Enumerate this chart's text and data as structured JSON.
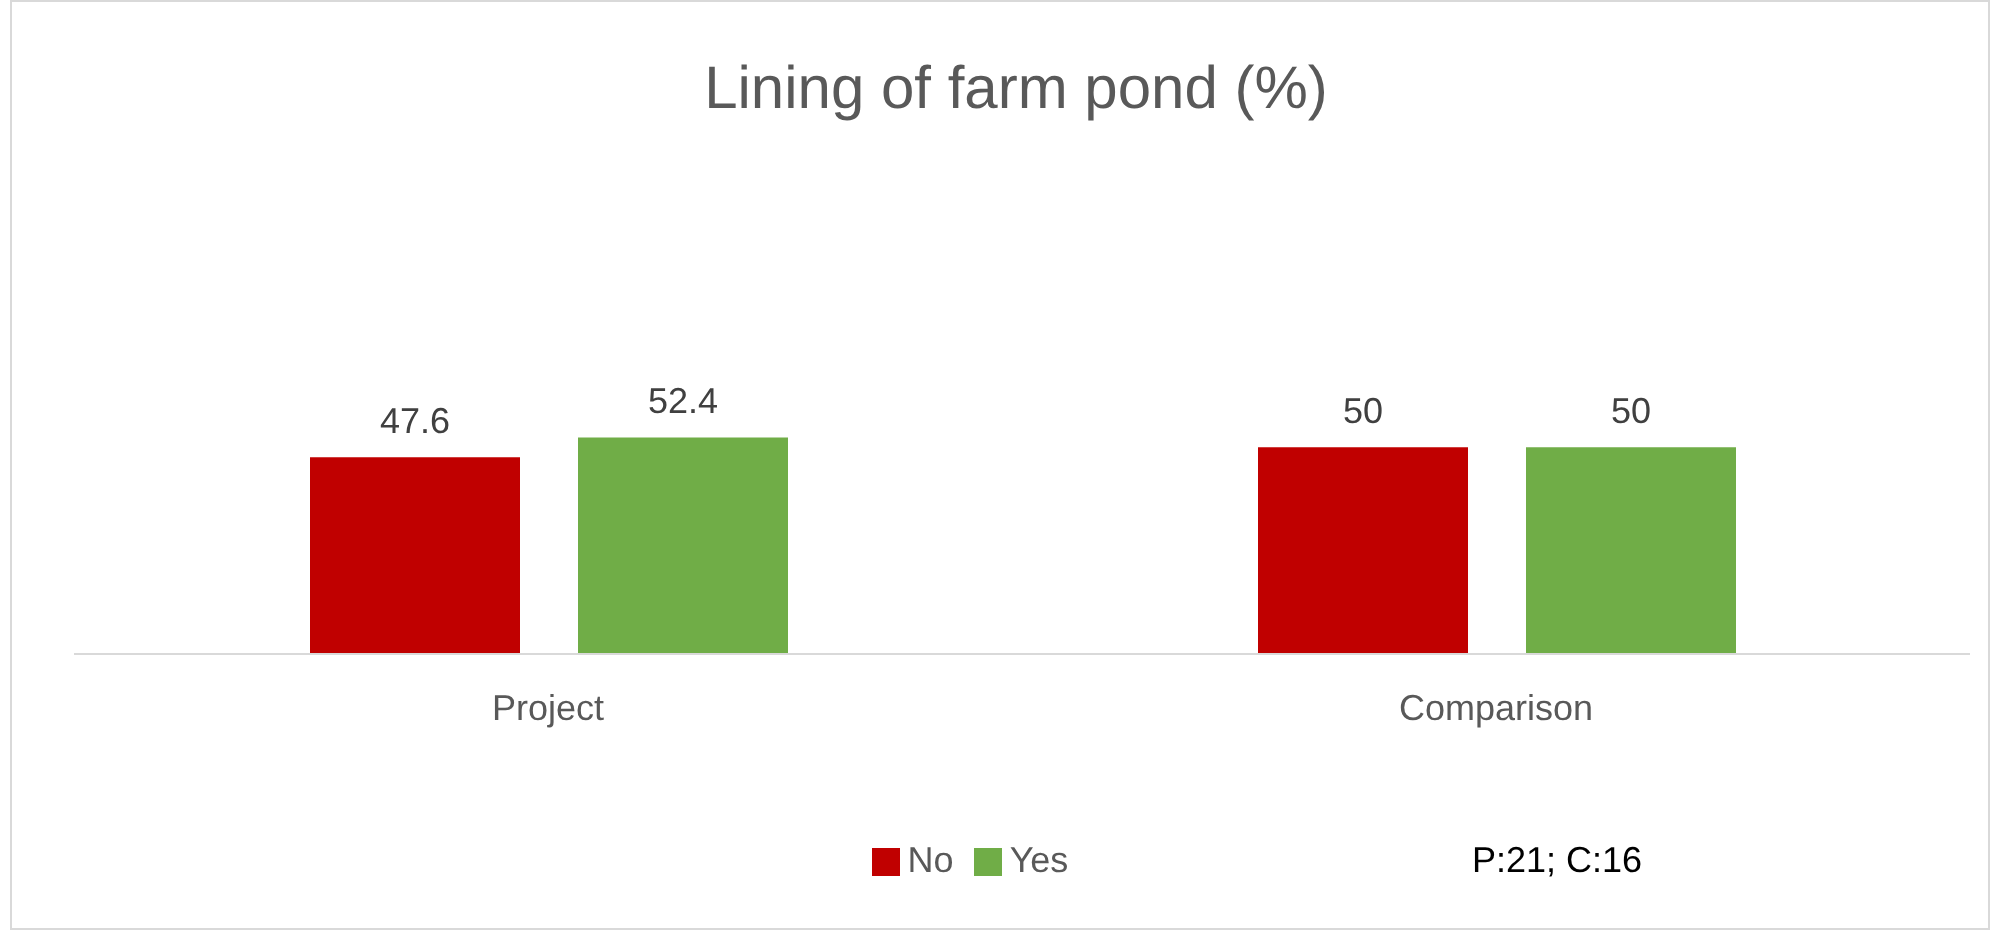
{
  "chart_data": {
    "type": "bar",
    "title": "Lining of farm pond (%)",
    "categories": [
      "Project",
      "Comparison"
    ],
    "series": [
      {
        "name": "No",
        "color": "#c00000",
        "values": [
          47.6,
          50
        ]
      },
      {
        "name": "Yes",
        "color": "#70ad47",
        "values": [
          52.4,
          50
        ]
      }
    ],
    "data_labels": true,
    "legend": "bottom",
    "grid": false,
    "annotations": [
      "P:21; C:16"
    ]
  }
}
